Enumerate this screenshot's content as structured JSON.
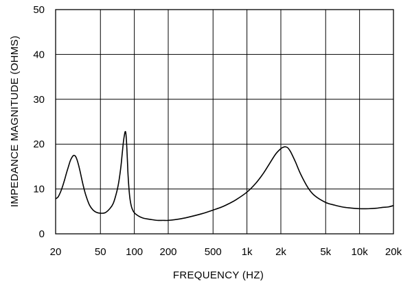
{
  "chart_data": {
    "type": "line",
    "title": "",
    "xlabel": "FREQUENCY  (HZ)",
    "ylabel": "IMPEDANCE MAGNITUDE  (OHMS)",
    "x_scale": "log",
    "xlim": [
      20,
      20000
    ],
    "ylim": [
      0,
      50
    ],
    "grid": true,
    "legend": "none",
    "x_ticks": [
      {
        "value": 20,
        "label": "20"
      },
      {
        "value": 50,
        "label": "50"
      },
      {
        "value": 100,
        "label": "100"
      },
      {
        "value": 200,
        "label": "200"
      },
      {
        "value": 500,
        "label": "500"
      },
      {
        "value": 1000,
        "label": "1k"
      },
      {
        "value": 2000,
        "label": "2k"
      },
      {
        "value": 5000,
        "label": "5k"
      },
      {
        "value": 10000,
        "label": "10k"
      },
      {
        "value": 20000,
        "label": "20k"
      }
    ],
    "y_ticks": [
      {
        "value": 0,
        "label": "0"
      },
      {
        "value": 10,
        "label": "10"
      },
      {
        "value": 20,
        "label": "20"
      },
      {
        "value": 30,
        "label": "30"
      },
      {
        "value": 40,
        "label": "40"
      },
      {
        "value": 50,
        "label": "50"
      }
    ],
    "series": [
      {
        "color": "#000000",
        "x": [
          20,
          21,
          22,
          23,
          24,
          25,
          26,
          27,
          28,
          29,
          30,
          31,
          32,
          33,
          35,
          37,
          40,
          43,
          46,
          50,
          55,
          60,
          65,
          70,
          73,
          76,
          78,
          80,
          82,
          83,
          84,
          85,
          86,
          87,
          88,
          90,
          92,
          95,
          100,
          110,
          120,
          140,
          160,
          180,
          200,
          250,
          300,
          400,
          500,
          600,
          700,
          800,
          1000,
          1200,
          1400,
          1600,
          1800,
          2000,
          2100,
          2200,
          2300,
          2400,
          2500,
          2700,
          3000,
          3500,
          4000,
          5000,
          6000,
          7000,
          8000,
          10000,
          12000,
          14000,
          16000,
          18000,
          20000
        ],
        "y": [
          7.8,
          8.2,
          9.2,
          10.5,
          12.0,
          13.6,
          15.0,
          16.3,
          17.1,
          17.5,
          17.3,
          16.5,
          15.3,
          13.9,
          11.0,
          8.7,
          6.4,
          5.3,
          4.8,
          4.6,
          4.7,
          5.5,
          6.8,
          9.5,
          11.8,
          15.0,
          17.8,
          20.5,
          22.3,
          22.8,
          22.5,
          21.0,
          18.6,
          15.8,
          13.0,
          9.5,
          7.4,
          5.8,
          4.7,
          3.9,
          3.5,
          3.2,
          3.0,
          3.0,
          3.0,
          3.3,
          3.7,
          4.5,
          5.3,
          6.0,
          6.8,
          7.6,
          9.3,
          11.3,
          13.5,
          15.8,
          17.8,
          19.0,
          19.3,
          19.4,
          19.2,
          18.6,
          17.8,
          16.0,
          13.3,
          10.2,
          8.5,
          7.0,
          6.4,
          6.0,
          5.8,
          5.6,
          5.6,
          5.7,
          5.9,
          6.0,
          6.3
        ]
      }
    ]
  }
}
